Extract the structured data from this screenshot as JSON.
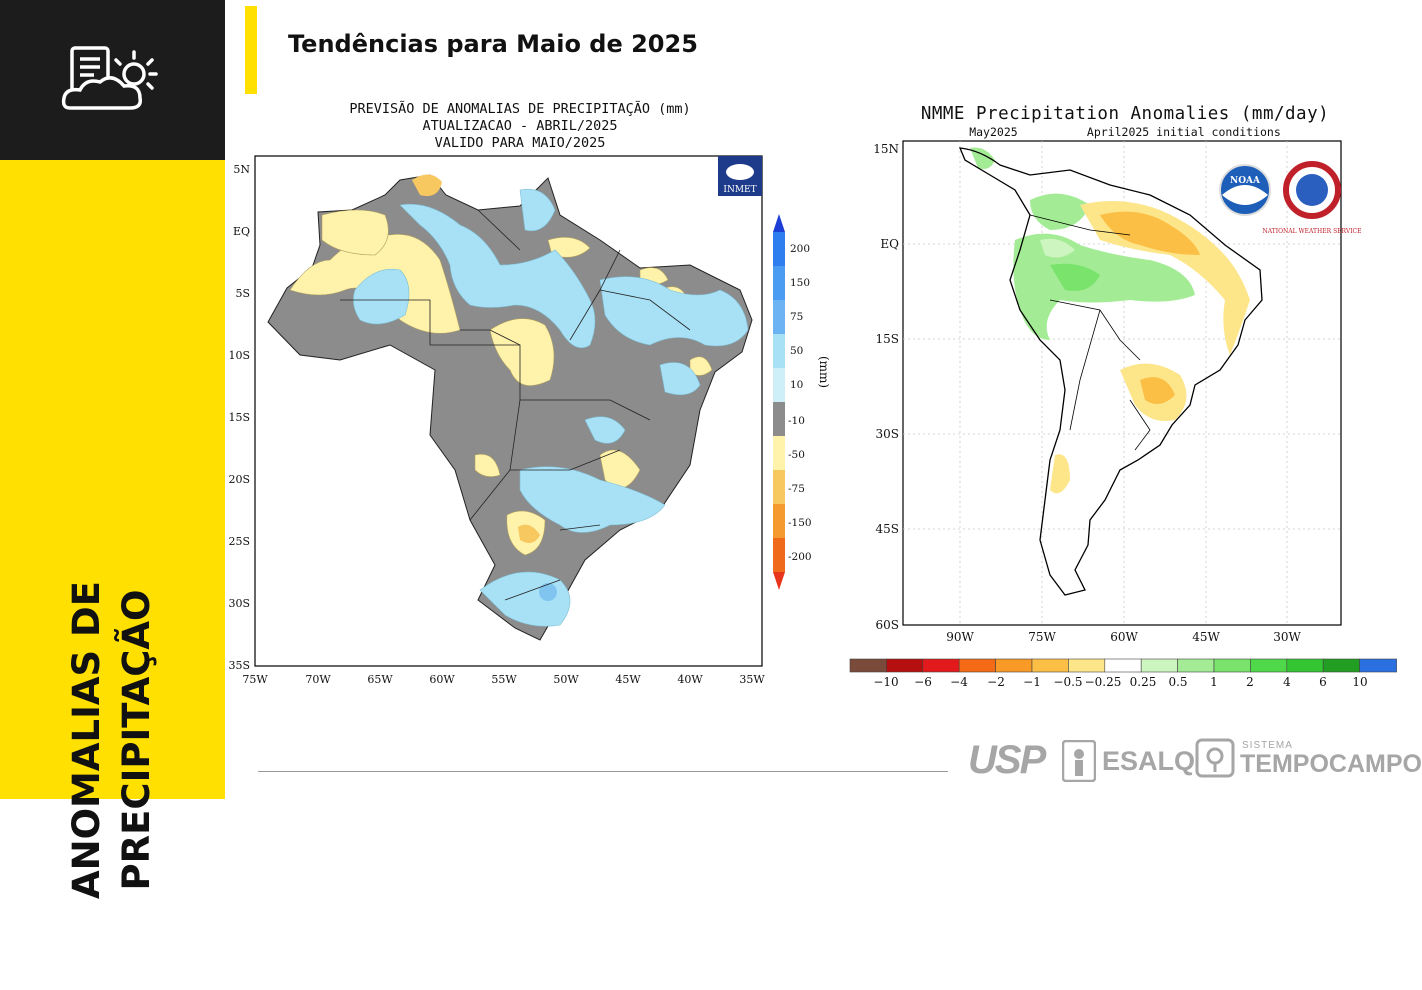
{
  "header": {
    "title": "Tendências para Maio de 2025"
  },
  "sidebar": {
    "title_line1": "ANOMALIAS DE",
    "title_line2": "PRECIPITAÇÃO",
    "icon": "weather-report-icon"
  },
  "left_map": {
    "title_lines": [
      "PREVISÃO DE ANOMALIAS DE PRECIPITAÇÃO (mm)",
      "ATUALIZACAO - ABRIL/2025",
      "VALIDO PARA MAIO/2025"
    ],
    "logo_text": "INMET",
    "lat_labels": [
      "5N",
      "EQ",
      "5S",
      "10S",
      "15S",
      "20S",
      "25S",
      "30S",
      "35S"
    ],
    "lon_labels": [
      "75W",
      "70W",
      "65W",
      "60W",
      "55W",
      "50W",
      "45W",
      "40W",
      "35W"
    ],
    "colorbar": {
      "unit_label": "(mm)",
      "labels": [
        "200",
        "150",
        "75",
        "50",
        "10",
        "-10",
        "-50",
        "-75",
        "-150",
        "-200"
      ],
      "colors": [
        "#1e3fd6",
        "#2f7ef0",
        "#6cb3f4",
        "#a8e1f5",
        "#cfeff8",
        "#8c8c8c",
        "#fff2aa",
        "#f7c760",
        "#f59a2e",
        "#f06a1c",
        "#e8361c"
      ]
    }
  },
  "right_map": {
    "title": "NMME Precipitation Anomalies (mm/day)",
    "subtitle_left": "May2025",
    "subtitle_right": "April2025 initial conditions",
    "lat_labels": [
      "15N",
      "EQ",
      "15S",
      "30S",
      "45S",
      "60S"
    ],
    "lon_labels": [
      "90W",
      "75W",
      "60W",
      "45W",
      "30W"
    ],
    "logos": [
      "NOAA",
      "NATIONAL WEATHER SERVICE"
    ],
    "colorbar": {
      "labels": [
        "−10",
        "−6",
        "−4",
        "−2",
        "−1",
        "−0.5",
        "−0.25",
        "0.25",
        "0.5",
        "1",
        "2",
        "4",
        "6",
        "10"
      ],
      "colors": [
        "#7a4a3a",
        "#b5100f",
        "#e31a1c",
        "#f56a14",
        "#f99a26",
        "#fbbf45",
        "#fde58a",
        "#ffffff",
        "#cdf5c0",
        "#a3ec95",
        "#79e36c",
        "#4fd94a",
        "#33c632",
        "#229f22",
        "#2a70e0"
      ]
    }
  },
  "footer": {
    "logo_usp": "USP",
    "logo_esalq": "ESALQ",
    "logo_sistema": "SISTEMA",
    "logo_tempocampo": "TEMPOCAMPO"
  }
}
